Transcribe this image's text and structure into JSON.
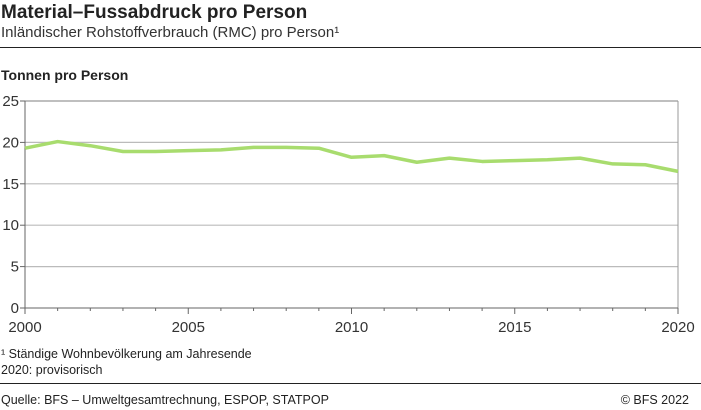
{
  "header": {
    "title": "Material–Fussabdruck pro Person",
    "subtitle": "Inländischer Rohstoffverbrauch (RMC) pro Person¹"
  },
  "footer": {
    "note1": "¹   Ständige Wohnbevölkerung am Jahresende",
    "note2": "2020: provisorisch",
    "source": "Quelle: BFS – Umweltgesamtrechnung, ESPOP, STATPOP",
    "copyright": "© BFS 2022"
  },
  "chart_data": {
    "type": "line",
    "title": "Material–Fussabdruck pro Person",
    "subtitle": "Inländischer Rohstoffverbrauch (RMC) pro Person¹",
    "ylabel": "Tonnen pro Person",
    "xlim": [
      2000,
      2020
    ],
    "ylim": [
      0,
      25
    ],
    "xticks": [
      2000,
      2005,
      2010,
      2015,
      2020
    ],
    "yticks": [
      0,
      5,
      10,
      15,
      20,
      25
    ],
    "grid": true,
    "color": "#a8dc6e",
    "x": [
      2000,
      2001,
      2002,
      2003,
      2004,
      2005,
      2006,
      2007,
      2008,
      2009,
      2010,
      2011,
      2012,
      2013,
      2014,
      2015,
      2016,
      2017,
      2018,
      2019,
      2020
    ],
    "values": [
      19.3,
      20.1,
      19.6,
      18.9,
      18.9,
      19.0,
      19.1,
      19.4,
      19.4,
      19.3,
      18.2,
      18.4,
      17.6,
      18.1,
      17.7,
      17.8,
      17.9,
      18.1,
      17.4,
      17.3,
      16.5
    ]
  }
}
